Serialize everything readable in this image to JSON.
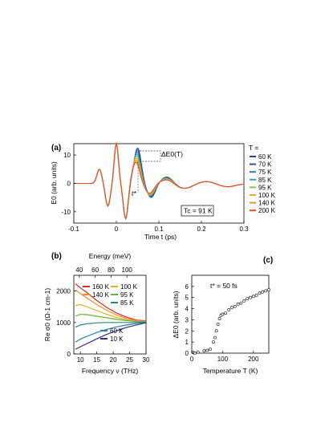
{
  "chart_data": [
    {
      "panel": "(a)",
      "type": "line",
      "xlabel": "Time t  (ps)",
      "ylabel": "E0  (arb. units)",
      "xlim": [
        -0.1,
        0.3
      ],
      "ylim": [
        -14,
        14
      ],
      "xticks": [
        "-0.1",
        "0",
        "0.1",
        "0.2",
        "0.3"
      ],
      "yticks": [
        "10",
        "0",
        "-10"
      ],
      "legend_title": "T =",
      "annotations": [
        "ΔE0(T)",
        "t*",
        "Tc = 91 K"
      ],
      "series": [
        {
          "name": "60 K",
          "color": "#1f3f8f"
        },
        {
          "name": "70 K",
          "color": "#2a4fb0"
        },
        {
          "name": "75 K",
          "color": "#2a78c0"
        },
        {
          "name": "85 K",
          "color": "#3aa0a8"
        },
        {
          "name": "95 K",
          "color": "#8cc040"
        },
        {
          "name": "100 K",
          "color": "#e8b020"
        },
        {
          "name": "140 K",
          "color": "#f08a30"
        },
        {
          "name": "200 K",
          "color": "#e84c20"
        }
      ]
    },
    {
      "panel": "(b)",
      "type": "line",
      "xlabel": "Frequency ν  (THz)",
      "ylabel": "Re σ0  (Ω-1 cm-1)",
      "top_xlabel": "Energy  (meV)",
      "xlim": [
        8,
        30
      ],
      "ylim": [
        0,
        2500
      ],
      "xticks": [
        "10",
        "15",
        "20",
        "25",
        "30"
      ],
      "top_xticks": [
        "40",
        "60",
        "80",
        "100"
      ],
      "yticks": [
        "2000",
        "1000",
        "0"
      ],
      "x": [
        8.5,
        10,
        12,
        15,
        18,
        21,
        24,
        27,
        30
      ],
      "series": [
        {
          "name": "160 K",
          "color": "#d42a20",
          "values": [
            2230,
            2100,
            1950,
            1700,
            1480,
            1300,
            1170,
            1080,
            1050
          ]
        },
        {
          "name": "140 K",
          "color": "#f08a30",
          "values": [
            2030,
            1920,
            1780,
            1570,
            1390,
            1240,
            1130,
            1060,
            1040
          ]
        },
        {
          "name": "100 K",
          "color": "#e8b020",
          "values": [
            1540,
            1570,
            1500,
            1380,
            1260,
            1160,
            1090,
            1040,
            1030
          ]
        },
        {
          "name": "95 K",
          "color": "#6ab040",
          "values": [
            1200,
            1260,
            1250,
            1200,
            1150,
            1100,
            1060,
            1030,
            1020
          ]
        },
        {
          "name": "85 K",
          "color": "#2a8c70",
          "values": [
            850,
            920,
            960,
            990,
            1000,
            1000,
            1000,
            1000,
            1010
          ]
        },
        {
          "name": "60 K",
          "color": "#2a7ac0",
          "values": [
            380,
            470,
            560,
            680,
            780,
            860,
            920,
            970,
            1000
          ]
        },
        {
          "name": "10 K",
          "color": "#3a2a8a",
          "values": [
            150,
            230,
            330,
            480,
            620,
            740,
            840,
            920,
            990
          ]
        }
      ]
    },
    {
      "panel": "(c)",
      "type": "scatter",
      "xlabel": "Temperature T  (K)",
      "ylabel": "ΔE0  (arb. units)",
      "annotation": "t* = 50 fs",
      "xlim": [
        0,
        250
      ],
      "ylim": [
        0,
        7
      ],
      "xticks": [
        "0",
        "100",
        "200"
      ],
      "yticks": [
        "0",
        "1",
        "2",
        "3",
        "4",
        "5",
        "6"
      ],
      "x": [
        5,
        10,
        20,
        40,
        50,
        60,
        70,
        75,
        80,
        85,
        90,
        95,
        100,
        110,
        120,
        130,
        140,
        150,
        160,
        170,
        180,
        190,
        200,
        210,
        220,
        230,
        240,
        250
      ],
      "y": [
        0.05,
        0.0,
        0.1,
        0.2,
        0.25,
        0.35,
        1.0,
        1.4,
        2.0,
        2.6,
        3.1,
        3.4,
        3.5,
        3.6,
        3.9,
        4.1,
        4.2,
        4.4,
        4.5,
        4.7,
        4.9,
        5.0,
        5.1,
        5.2,
        5.4,
        5.5,
        5.6,
        5.7
      ]
    }
  ]
}
